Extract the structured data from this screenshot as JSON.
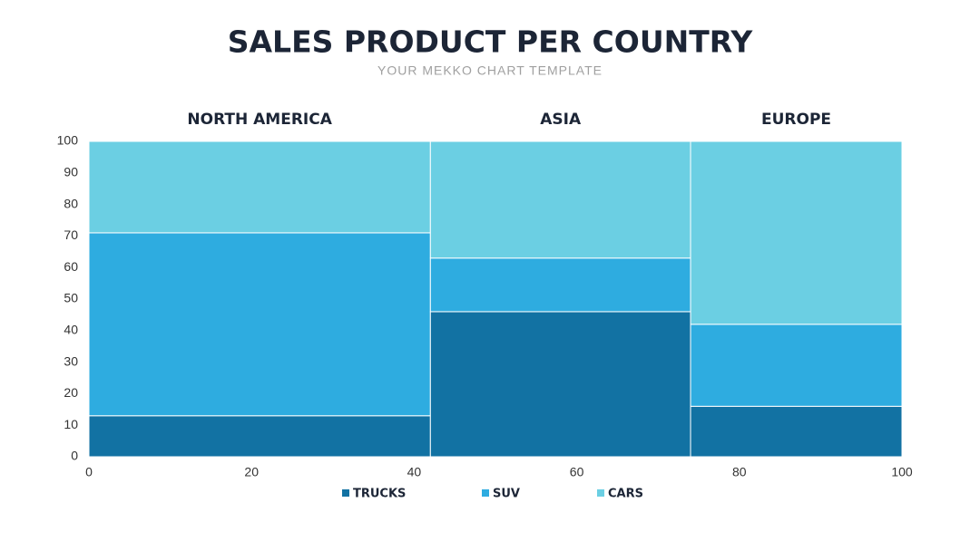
{
  "chart_data": {
    "type": "mekko",
    "title": "SALES PRODUCT PER COUNTRY",
    "subtitle": "YOUR MEKKO CHART TEMPLATE",
    "categories": [
      "NORTH AMERICA",
      "ASIA",
      "EUROPE"
    ],
    "widths": [
      42,
      32,
      26
    ],
    "series": [
      {
        "name": "TRUCKS",
        "color": "#1272a3",
        "values": [
          13,
          46,
          16
        ]
      },
      {
        "name": "SUV",
        "color": "#2eace0",
        "values": [
          58,
          17,
          26
        ]
      },
      {
        "name": "CARS",
        "color": "#6bcfe3",
        "values": [
          29,
          37,
          58
        ]
      }
    ],
    "xlim": [
      0,
      100
    ],
    "xticks": [
      0,
      20,
      40,
      60,
      80,
      100
    ],
    "ylim": [
      0,
      100
    ],
    "yticks": [
      0,
      10,
      20,
      30,
      40,
      50,
      60,
      70,
      80,
      90,
      100
    ],
    "legend": "bottom"
  }
}
